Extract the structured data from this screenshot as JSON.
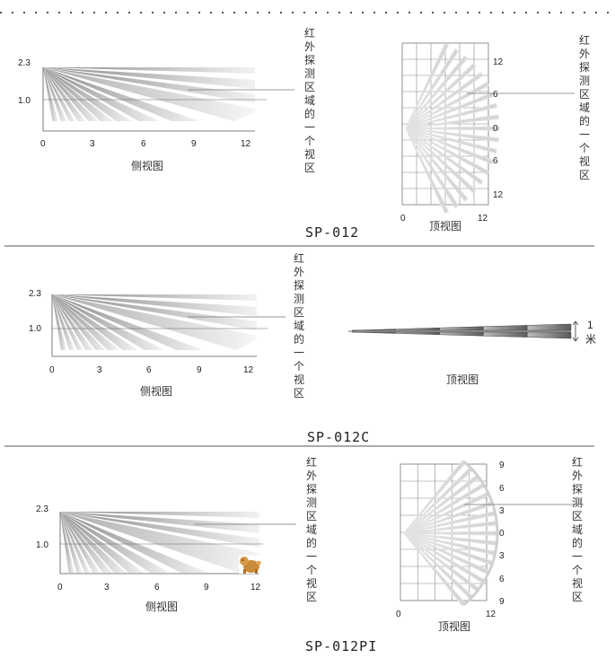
{
  "panels": [
    {
      "model": "SP-012",
      "side_view": {
        "caption": "侧视图",
        "y_ticks": [
          "2.3",
          "1.0"
        ],
        "x_ticks": [
          "0",
          "3",
          "6",
          "9",
          "12"
        ]
      },
      "top_view": {
        "type": "grid-fan",
        "caption": "顶视图",
        "x_ticks": [
          "0",
          "12"
        ],
        "y_ticks": [
          "12",
          "6",
          "0",
          "6",
          "12"
        ]
      },
      "zone_label_side": "红外探测区域的一个视区",
      "zone_label_top": "红外探测区域的一个视区"
    },
    {
      "model": "SP-012C",
      "side_view": {
        "caption": "侧视图",
        "y_ticks": [
          "2.3",
          "1.0"
        ],
        "x_ticks": [
          "0",
          "3",
          "6",
          "9",
          "12"
        ]
      },
      "top_view": {
        "type": "curtain",
        "caption": "顶视图",
        "width_value": "1",
        "width_unit": "米"
      },
      "zone_label_side": "红外探测区域的一个视区"
    },
    {
      "model": "SP-012PI",
      "side_view": {
        "caption": "侧视图",
        "y_ticks": [
          "2.3",
          "1.0"
        ],
        "x_ticks": [
          "0",
          "3",
          "6",
          "9",
          "12"
        ],
        "has_pet_icon": true
      },
      "top_view": {
        "type": "grid-fan",
        "caption": "顶视图",
        "x_ticks": [
          "0",
          "12"
        ],
        "y_ticks": [
          "9",
          "6",
          "3",
          "0",
          "3",
          "6",
          "9"
        ]
      },
      "zone_label_side": "红外探测区域的一个视区",
      "zone_label_top": "红外探测区域的一个视区"
    }
  ],
  "colors": {
    "beam_dark": "#8a8a8a",
    "beam_light": "#f2f2f2",
    "grid": "#777777",
    "divider": "#555555"
  }
}
